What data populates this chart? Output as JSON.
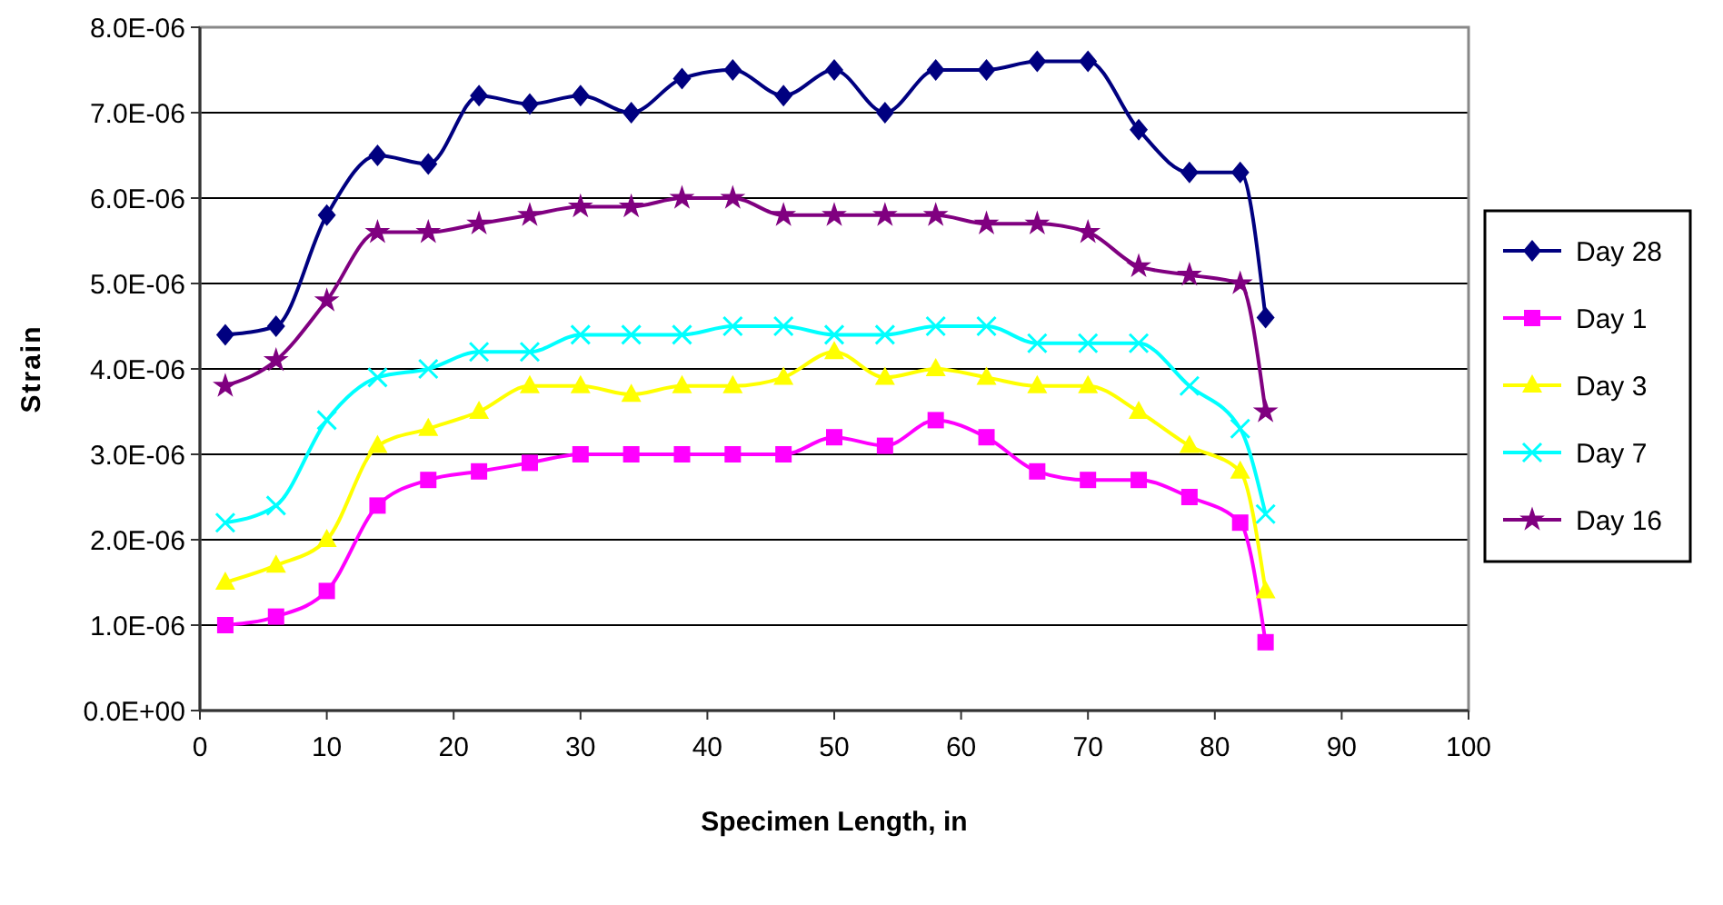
{
  "chart_data": {
    "type": "line",
    "xlabel": "Specimen Length, in",
    "ylabel": "Strain",
    "x": [
      2,
      6,
      10,
      14,
      18,
      22,
      26,
      30,
      34,
      38,
      42,
      46,
      50,
      54,
      58,
      62,
      66,
      70,
      74,
      78,
      82,
      84
    ],
    "xlim": [
      0,
      100
    ],
    "xticks": [
      0,
      10,
      20,
      30,
      40,
      50,
      60,
      70,
      80,
      90,
      100
    ],
    "ylim": [
      0,
      8e-06
    ],
    "yticks": [
      {
        "value": 0,
        "label": "0.0E+00"
      },
      {
        "value": 1e-06,
        "label": "1.0E-06"
      },
      {
        "value": 2e-06,
        "label": "2.0E-06"
      },
      {
        "value": 3e-06,
        "label": "3.0E-06"
      },
      {
        "value": 4e-06,
        "label": "4.0E-06"
      },
      {
        "value": 5e-06,
        "label": "5.0E-06"
      },
      {
        "value": 6e-06,
        "label": "6.0E-06"
      },
      {
        "value": 7e-06,
        "label": "7.0E-06"
      },
      {
        "value": 8e-06,
        "label": "8.0E-06"
      }
    ],
    "grid": "y",
    "legend": "right",
    "line_style": "solid",
    "series": [
      {
        "name": "Day 28",
        "color": "#000080",
        "marker": "diamond",
        "values": [
          4.4e-06,
          4.5e-06,
          5.8e-06,
          6.5e-06,
          6.4e-06,
          7.2e-06,
          7.1e-06,
          7.2e-06,
          7e-06,
          7.4e-06,
          7.5e-06,
          7.2e-06,
          7.5e-06,
          7e-06,
          7.5e-06,
          7.5e-06,
          7.6e-06,
          7.6e-06,
          6.8e-06,
          6.3e-06,
          6.3e-06,
          4.6e-06
        ]
      },
      {
        "name": "Day 1",
        "color": "#ff00ff",
        "marker": "square",
        "values": [
          1e-06,
          1.1e-06,
          1.4e-06,
          2.4e-06,
          2.7e-06,
          2.8e-06,
          2.9e-06,
          3e-06,
          3e-06,
          3e-06,
          3e-06,
          3e-06,
          3.2e-06,
          3.1e-06,
          3.4e-06,
          3.2e-06,
          2.8e-06,
          2.7e-06,
          2.7e-06,
          2.5e-06,
          2.2e-06,
          8e-07
        ]
      },
      {
        "name": "Day 3",
        "color": "#ffff00",
        "marker": "triangle",
        "values": [
          1.5e-06,
          1.7e-06,
          2e-06,
          3.1e-06,
          3.3e-06,
          3.5e-06,
          3.8e-06,
          3.8e-06,
          3.7e-06,
          3.8e-06,
          3.8e-06,
          3.9e-06,
          4.2e-06,
          3.9e-06,
          4e-06,
          3.9e-06,
          3.8e-06,
          3.8e-06,
          3.5e-06,
          3.1e-06,
          2.8e-06,
          1.4e-06
        ]
      },
      {
        "name": "Day 7",
        "color": "#00ffff",
        "marker": "cross",
        "values": [
          2.2e-06,
          2.4e-06,
          3.4e-06,
          3.9e-06,
          4e-06,
          4.2e-06,
          4.2e-06,
          4.4e-06,
          4.4e-06,
          4.4e-06,
          4.5e-06,
          4.5e-06,
          4.4e-06,
          4.4e-06,
          4.5e-06,
          4.5e-06,
          4.3e-06,
          4.3e-06,
          4.3e-06,
          3.8e-06,
          3.3e-06,
          2.3e-06
        ]
      },
      {
        "name": "Day 16",
        "color": "#800080",
        "marker": "star",
        "values": [
          3.8e-06,
          4.1e-06,
          4.8e-06,
          5.6e-06,
          5.6e-06,
          5.7e-06,
          5.8e-06,
          5.9e-06,
          5.9e-06,
          6e-06,
          6e-06,
          5.8e-06,
          5.8e-06,
          5.8e-06,
          5.8e-06,
          5.7e-06,
          5.7e-06,
          5.6e-06,
          5.2e-06,
          5.1e-06,
          5e-06,
          3.5e-06
        ]
      }
    ]
  }
}
